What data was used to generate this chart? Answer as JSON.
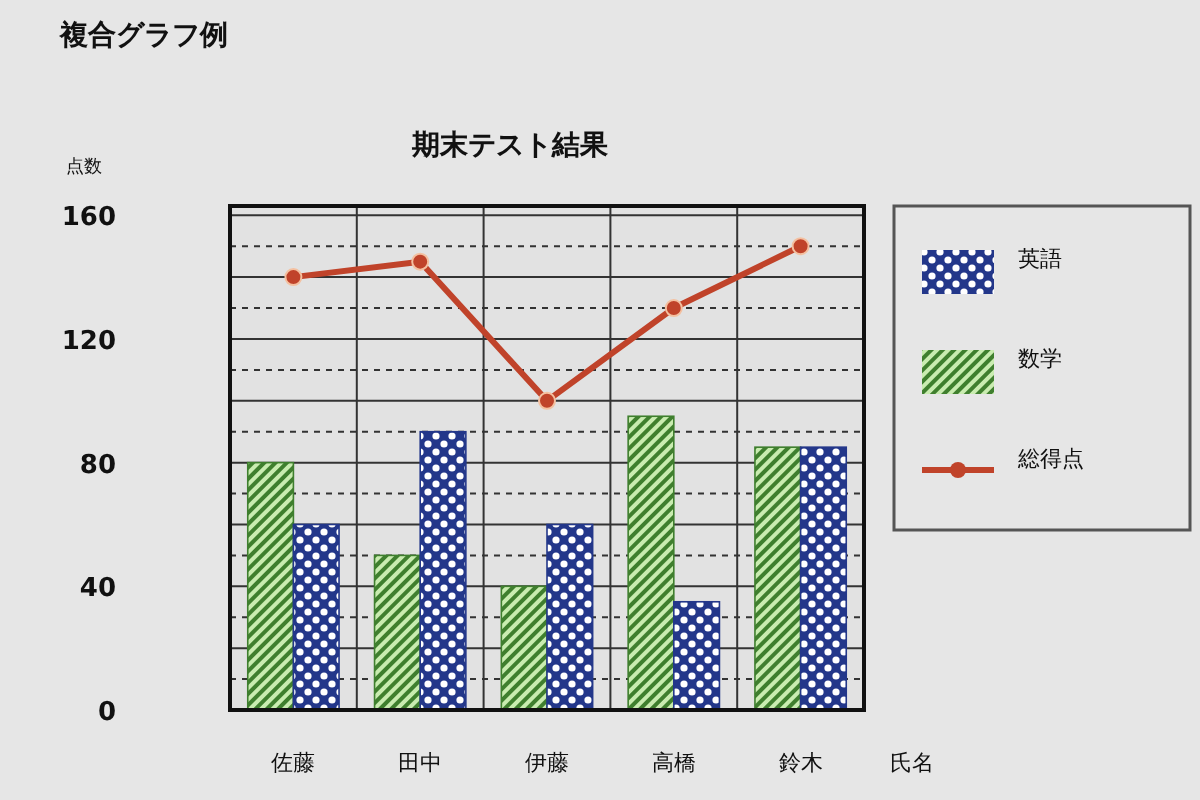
{
  "chart_data": {
    "type": "bar",
    "title": "複合グラフ例",
    "subtitle": "期末テスト結果",
    "xlabel": "氏名",
    "ylabel": "点数",
    "categories": [
      "佐藤",
      "田中",
      "伊藤",
      "高橋",
      "鈴木"
    ],
    "series": [
      {
        "name": "数学",
        "color": "#3f7f2e",
        "values": [
          80,
          50,
          40,
          95,
          85
        ]
      },
      {
        "name": "英語",
        "color": "#23378a",
        "values": [
          60,
          90,
          60,
          35,
          85
        ]
      },
      {
        "name": "総得点",
        "type": "line",
        "color": "#c0432a",
        "marker": "circle",
        "values": [
          140,
          145,
          100,
          130,
          150
        ]
      }
    ],
    "ylim": [
      0,
      163
    ],
    "yticks": [
      0,
      {
        "value": 20,
        "label": null
      },
      40,
      {
        "value": 60,
        "label": null
      },
      80,
      {
        "value": 100,
        "label": null
      },
      120,
      {
        "value": 140,
        "label": null
      },
      160
    ],
    "grid": true,
    "legend": "right"
  }
}
